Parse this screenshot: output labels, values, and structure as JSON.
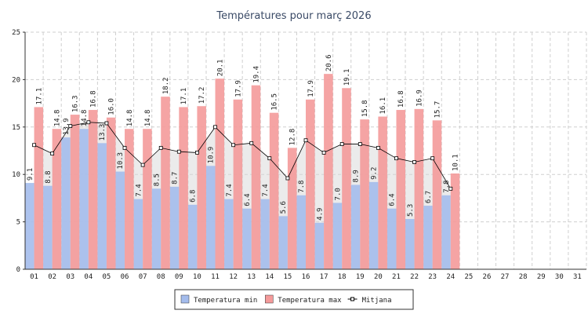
{
  "chart_data": {
    "type": "bar",
    "title": "Températures pour març 2026",
    "categories": [
      "01",
      "02",
      "03",
      "04",
      "05",
      "06",
      "07",
      "08",
      "09",
      "10",
      "11",
      "12",
      "13",
      "14",
      "15",
      "16",
      "17",
      "18",
      "19",
      "20",
      "21",
      "22",
      "23",
      "24",
      "25",
      "26",
      "27",
      "28",
      "29",
      "30",
      "31"
    ],
    "series": [
      {
        "name": "Temperatura min",
        "color": "#a4bcec",
        "values": [
          9.1,
          8.8,
          13.9,
          14.8,
          13.3,
          10.3,
          7.4,
          8.5,
          8.7,
          6.8,
          10.9,
          7.4,
          6.4,
          7.4,
          5.6,
          7.8,
          4.9,
          7.0,
          8.9,
          9.2,
          6.4,
          5.3,
          6.7,
          7.8,
          null,
          null,
          null,
          null,
          null,
          null,
          null
        ],
        "value_labels": [
          "9.1",
          "8.8",
          "13.9",
          "14.8",
          "13.3",
          "10.3",
          "7.4",
          "8.5",
          "8.7",
          "6.8",
          "10.9",
          "7.4",
          "6.4",
          "7.4",
          "5.6",
          "7.8",
          "4.9",
          "7.0",
          "8.9",
          "9.2",
          "6.4",
          "5.3",
          "6.7",
          "7.8",
          null,
          null,
          null,
          null,
          null,
          null,
          null
        ]
      },
      {
        "name": "Temperatura max",
        "color": "#f49a9a",
        "values": [
          17.1,
          14.8,
          16.3,
          16.8,
          16.0,
          14.8,
          14.8,
          18.2,
          17.1,
          17.2,
          20.1,
          17.9,
          19.4,
          16.5,
          12.8,
          17.9,
          20.6,
          19.1,
          15.8,
          16.1,
          16.8,
          16.9,
          15.7,
          10.1,
          null,
          null,
          null,
          null,
          null,
          null,
          null
        ],
        "value_labels": [
          "17.1",
          "14.8",
          "16.3",
          "16.8",
          "16.0",
          "14.8",
          "14.8",
          "18.2",
          "17.1",
          "17.2",
          "20.1",
          "17.9",
          "19.4",
          "16.5",
          "12.8",
          "17.9",
          "20.6",
          "19.1",
          "15.8",
          "16.1",
          "16.8",
          "16.9",
          "15.7",
          "10.1",
          null,
          null,
          null,
          null,
          null,
          null,
          null
        ]
      },
      {
        "name": "Mitjana",
        "type": "line",
        "color": "#000000",
        "values": [
          13.1,
          12.2,
          15.1,
          15.5,
          15.4,
          12.8,
          11.0,
          12.8,
          12.4,
          12.3,
          15.0,
          13.1,
          13.3,
          11.7,
          9.6,
          13.6,
          12.3,
          13.2,
          13.2,
          12.8,
          11.7,
          11.3,
          11.7,
          8.5,
          null,
          null,
          null,
          null,
          null,
          null,
          null
        ]
      }
    ],
    "ylim": [
      0,
      25
    ],
    "yticks": [
      0,
      5,
      10,
      15,
      20,
      25
    ],
    "grid": true
  }
}
